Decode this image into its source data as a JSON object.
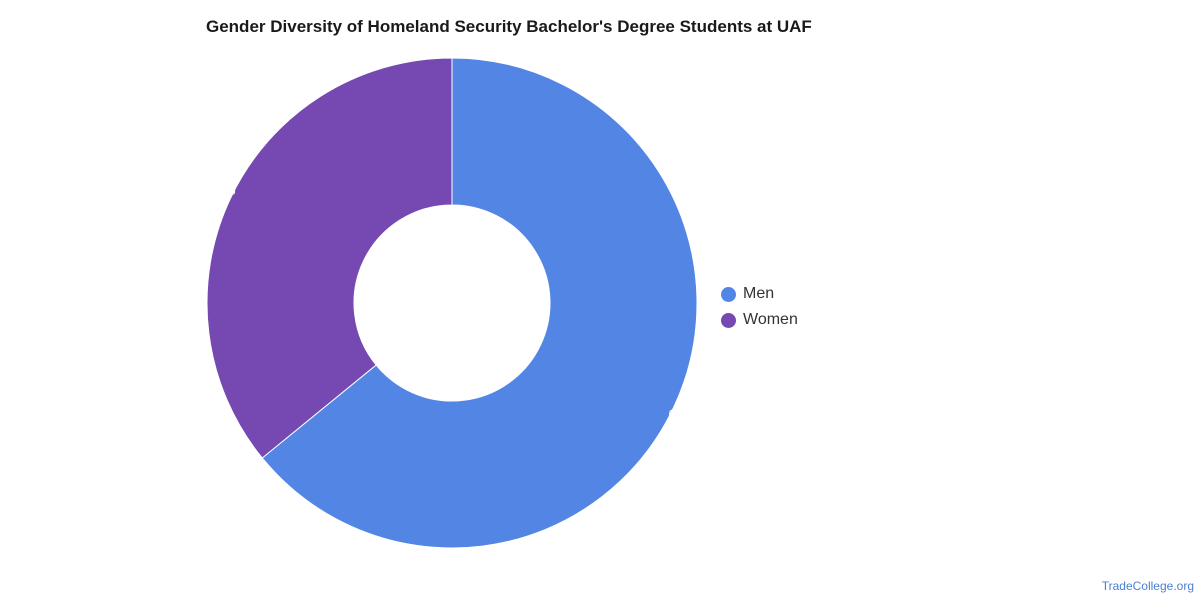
{
  "title": "Gender Diversity of Homeland Security Bachelor's Degree Students at UAF",
  "source": "TradeCollege.org",
  "chart_data": {
    "type": "pie",
    "style": "donut",
    "title": "Gender Diversity of Homeland Security Bachelor's Degree Students at UAF",
    "series": [
      {
        "name": "",
        "categories": [
          "Men",
          "Women"
        ],
        "values": [
          64.1,
          35.9
        ],
        "labels": [
          "64.1%",
          "35.9%"
        ],
        "colors": [
          "#5386e4",
          "#7549b1"
        ]
      }
    ],
    "legend": {
      "position": "right",
      "entries": [
        {
          "label": "Men",
          "color": "#5386e4"
        },
        {
          "label": "Women",
          "color": "#7549b1"
        }
      ]
    }
  }
}
